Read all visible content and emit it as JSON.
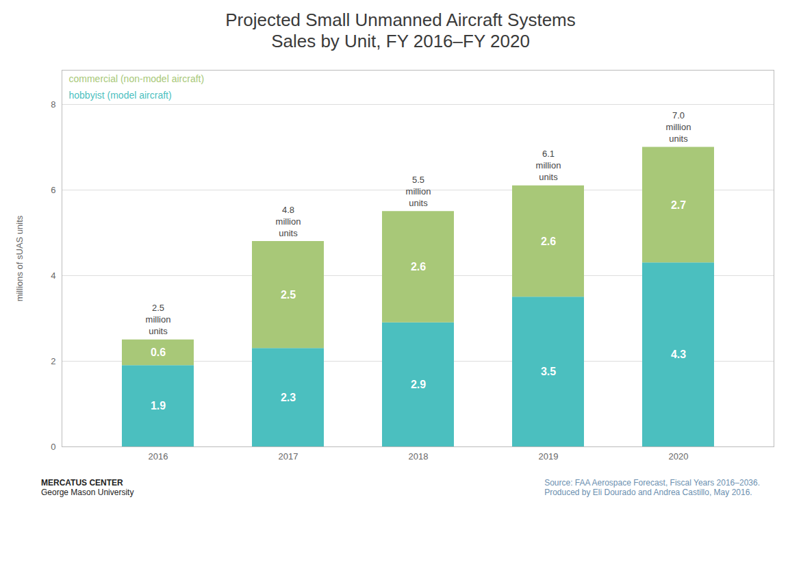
{
  "chart_data": {
    "type": "bar",
    "title": "Projected Small Unmanned Aircraft Systems\nSales by Unit, FY 2016–FY 2020",
    "y_label": "millions of sUAS units",
    "categories": [
      "2016",
      "2017",
      "2018",
      "2019",
      "2020"
    ],
    "series": [
      {
        "name": "hobbyist (model aircraft)",
        "color": "#4BBFBF",
        "values": [
          1.9,
          2.3,
          2.9,
          3.5,
          4.3
        ]
      },
      {
        "name": "commercial (non-model aircraft)",
        "color": "#A8C878",
        "values": [
          0.6,
          2.5,
          2.6,
          2.6,
          2.7
        ]
      }
    ],
    "stacked": true,
    "data_labels": true,
    "legend": "upper left",
    "grid": true,
    "ylim": [
      0,
      8.8
    ],
    "yticks": [
      0,
      2,
      4,
      6,
      8
    ],
    "annotations": [
      {
        "x": "2016",
        "y": 2.5,
        "text": "2.5\nmillion\nunits"
      },
      {
        "x": "2017",
        "y": 4.8,
        "text": "4.8\nmillion\nunits"
      },
      {
        "x": "2018",
        "y": 5.5,
        "text": "5.5\nmillion\nunits"
      },
      {
        "x": "2019",
        "y": 6.1,
        "text": "6.1\nmillion\nunits"
      },
      {
        "x": "2020",
        "y": 7.0,
        "text": "7.0\nmillion\nunits"
      }
    ],
    "caption_left": [
      "MERCATUS CENTER",
      "George Mason University"
    ],
    "caption_right": [
      "Source: FAA Aerospace Forecast, Fiscal Years 2016–2036.",
      "Produced by Eli Dourado and Andrea Castillo, May 2016."
    ]
  }
}
